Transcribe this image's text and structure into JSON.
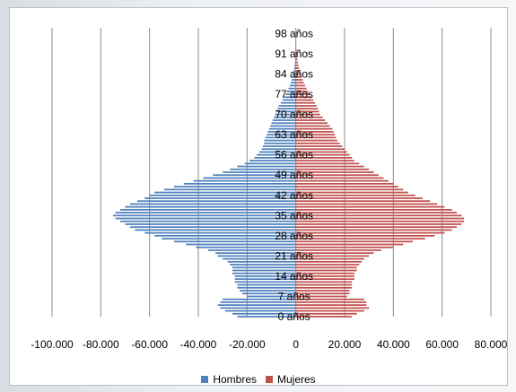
{
  "chart_data": {
    "type": "bar",
    "orientation": "horizontal",
    "title": "",
    "ages": [
      0,
      1,
      2,
      3,
      4,
      5,
      6,
      7,
      8,
      9,
      10,
      11,
      12,
      13,
      14,
      15,
      16,
      17,
      18,
      19,
      20,
      21,
      22,
      23,
      24,
      25,
      26,
      27,
      28,
      29,
      30,
      31,
      32,
      33,
      34,
      35,
      36,
      37,
      38,
      39,
      40,
      41,
      42,
      43,
      44,
      45,
      46,
      47,
      48,
      49,
      50,
      51,
      52,
      53,
      54,
      55,
      56,
      57,
      58,
      59,
      60,
      61,
      62,
      63,
      64,
      65,
      66,
      67,
      68,
      69,
      70,
      71,
      72,
      73,
      74,
      75,
      76,
      77,
      78,
      79,
      80,
      81,
      82,
      83,
      84,
      85,
      86,
      87,
      88,
      89,
      90,
      91,
      92,
      93,
      94,
      95,
      96,
      97,
      98,
      99,
      100
    ],
    "y_tick_labels": [
      "0 años",
      "7 años",
      "14 años",
      "21 años",
      "28 años",
      "35 años",
      "42 años",
      "49 años",
      "56 años",
      "63 años",
      "70 años",
      "77 años",
      "84 años",
      "91 años",
      "98 años"
    ],
    "y_tick_ages": [
      0,
      7,
      14,
      21,
      28,
      35,
      42,
      49,
      56,
      63,
      70,
      77,
      84,
      91,
      98
    ],
    "x_tick_values": [
      -100000,
      -80000,
      -60000,
      -40000,
      -20000,
      0,
      20000,
      40000,
      60000,
      80000
    ],
    "x_tick_labels": [
      "-100.000",
      "-80.000",
      "-60.000",
      "-40.000",
      "-20.000",
      "0",
      "20.000",
      "40.000",
      "60.000",
      "80.000"
    ],
    "xlim": [
      -100000,
      80000
    ],
    "grid": "vertical",
    "legend_position": "bottom",
    "series": [
      {
        "name": "Hombres",
        "color": "#4f81bd",
        "values": [
          -24000,
          -26000,
          -29000,
          -31000,
          -32000,
          -31000,
          -30000,
          -20000,
          -22000,
          -23000,
          -24000,
          -24000,
          -25000,
          -25000,
          -25000,
          -26000,
          -26000,
          -26000,
          -27000,
          -28000,
          -30000,
          -32000,
          -33000,
          -36000,
          -41000,
          -45000,
          -50000,
          -55000,
          -58000,
          -62000,
          -66000,
          -68000,
          -70000,
          -72000,
          -74000,
          -75000,
          -74000,
          -72000,
          -70000,
          -68000,
          -65000,
          -62000,
          -60000,
          -58000,
          -54000,
          -50000,
          -46000,
          -42000,
          -38000,
          -34000,
          -30000,
          -27000,
          -24000,
          -21000,
          -19000,
          -17000,
          -16000,
          -15000,
          -14000,
          -13500,
          -13000,
          -13000,
          -12500,
          -12000,
          -11500,
          -11000,
          -10500,
          -10000,
          -9500,
          -9000,
          -8500,
          -8000,
          -7500,
          -7000,
          -6200,
          -5400,
          -4800,
          -4200,
          -3600,
          -3000,
          -2500,
          -2100,
          -1700,
          -1400,
          -1100,
          -900,
          -700,
          -550,
          -420,
          -320,
          -240,
          -180,
          -130,
          -100,
          -70,
          -50,
          -35,
          -25,
          -15,
          -10,
          -5
        ]
      },
      {
        "name": "Mujeres",
        "color": "#c0504d",
        "values": [
          23000,
          25000,
          28000,
          30000,
          29000,
          29000,
          28000,
          21000,
          22000,
          22000,
          23000,
          23000,
          23000,
          24000,
          24000,
          24000,
          25000,
          25000,
          26000,
          27000,
          28000,
          30000,
          32000,
          35000,
          40000,
          44000,
          48000,
          53000,
          57000,
          61000,
          64000,
          66000,
          68000,
          69000,
          69000,
          68000,
          66000,
          64000,
          61000,
          58000,
          55000,
          52000,
          49000,
          46000,
          44000,
          42000,
          40000,
          38000,
          36000,
          34000,
          32000,
          30000,
          28000,
          26000,
          24000,
          23000,
          22000,
          21000,
          20000,
          19000,
          18000,
          17000,
          16500,
          16000,
          15500,
          15000,
          14000,
          13000,
          12000,
          11000,
          10000,
          9500,
          9000,
          8500,
          7800,
          7100,
          6400,
          5700,
          5000,
          4400,
          3800,
          3300,
          2800,
          2400,
          2000,
          1650,
          1350,
          1100,
          880,
          700,
          540,
          410,
          310,
          230,
          170,
          120,
          85,
          60,
          40,
          25,
          15
        ]
      }
    ]
  }
}
